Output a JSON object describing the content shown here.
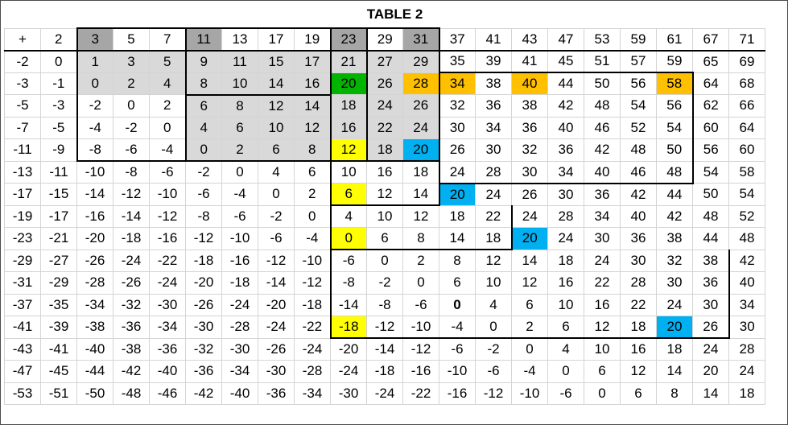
{
  "title": "TABLE 2",
  "colors": {
    "lightgray": "#d9d9d9",
    "darkgray": "#a6a6a6",
    "green": "#00b400",
    "yellow": "#ffff00",
    "orange": "#ffc000",
    "blue": "#00b0f0"
  },
  "table": {
    "header": [
      "+",
      "2",
      "3",
      "5",
      "7",
      "11",
      "13",
      "17",
      "19",
      "23",
      "29",
      "31",
      "37",
      "41",
      "43",
      "47",
      "53",
      "59",
      "61",
      "67",
      "71"
    ],
    "rows": [
      [
        "-2",
        "0",
        "1",
        "3",
        "5",
        "9",
        "11",
        "15",
        "17",
        "21",
        "27",
        "29",
        "35",
        "39",
        "41",
        "45",
        "51",
        "57",
        "59",
        "65",
        "69"
      ],
      [
        "-3",
        "-1",
        "0",
        "2",
        "4",
        "8",
        "10",
        "14",
        "16",
        "20",
        "26",
        "28",
        "34",
        "38",
        "40",
        "44",
        "50",
        "56",
        "58",
        "64",
        "68"
      ],
      [
        "-5",
        "-3",
        "-2",
        "0",
        "2",
        "6",
        "8",
        "12",
        "14",
        "18",
        "24",
        "26",
        "32",
        "36",
        "38",
        "42",
        "48",
        "54",
        "56",
        "62",
        "66"
      ],
      [
        "-7",
        "-5",
        "-4",
        "-2",
        "0",
        "4",
        "6",
        "10",
        "12",
        "16",
        "22",
        "24",
        "30",
        "34",
        "36",
        "40",
        "46",
        "52",
        "54",
        "60",
        "64"
      ],
      [
        "-11",
        "-9",
        "-8",
        "-6",
        "-4",
        "0",
        "2",
        "6",
        "8",
        "12",
        "18",
        "20",
        "26",
        "30",
        "32",
        "36",
        "42",
        "48",
        "50",
        "56",
        "60"
      ],
      [
        "-13",
        "-11",
        "-10",
        "-8",
        "-6",
        "-2",
        "0",
        "4",
        "6",
        "10",
        "16",
        "18",
        "24",
        "28",
        "30",
        "34",
        "40",
        "46",
        "48",
        "54",
        "58"
      ],
      [
        "-17",
        "-15",
        "-14",
        "-12",
        "-10",
        "-6",
        "-4",
        "0",
        "2",
        "6",
        "12",
        "14",
        "20",
        "24",
        "26",
        "30",
        "36",
        "42",
        "44",
        "50",
        "54"
      ],
      [
        "-19",
        "-17",
        "-16",
        "-14",
        "-12",
        "-8",
        "-6",
        "-2",
        "0",
        "4",
        "10",
        "12",
        "18",
        "22",
        "24",
        "28",
        "34",
        "40",
        "42",
        "48",
        "52"
      ],
      [
        "-23",
        "-21",
        "-20",
        "-18",
        "-16",
        "-12",
        "-10",
        "-6",
        "-4",
        "0",
        "6",
        "8",
        "14",
        "18",
        "20",
        "24",
        "30",
        "36",
        "38",
        "44",
        "48"
      ],
      [
        "-29",
        "-27",
        "-26",
        "-24",
        "-22",
        "-18",
        "-16",
        "-12",
        "-10",
        "-6",
        "0",
        "2",
        "8",
        "12",
        "14",
        "18",
        "24",
        "30",
        "32",
        "38",
        "42"
      ],
      [
        "-31",
        "-29",
        "-28",
        "-26",
        "-24",
        "-20",
        "-18",
        "-14",
        "-12",
        "-8",
        "-2",
        "0",
        "6",
        "10",
        "12",
        "16",
        "22",
        "28",
        "30",
        "36",
        "40"
      ],
      [
        "-37",
        "-35",
        "-34",
        "-32",
        "-30",
        "-26",
        "-24",
        "-20",
        "-18",
        "-14",
        "-8",
        "-6",
        "0",
        "4",
        "6",
        "10",
        "16",
        "22",
        "24",
        "30",
        "34"
      ],
      [
        "-41",
        "-39",
        "-38",
        "-36",
        "-34",
        "-30",
        "-28",
        "-24",
        "-22",
        "-18",
        "-12",
        "-10",
        "-4",
        "0",
        "2",
        "6",
        "12",
        "18",
        "20",
        "26",
        "30"
      ],
      [
        "-43",
        "-41",
        "-40",
        "-38",
        "-36",
        "-32",
        "-30",
        "-26",
        "-24",
        "-20",
        "-14",
        "-12",
        "-6",
        "-2",
        "0",
        "4",
        "10",
        "16",
        "18",
        "24",
        "28"
      ],
      [
        "-47",
        "-45",
        "-44",
        "-42",
        "-40",
        "-36",
        "-34",
        "-30",
        "-28",
        "-24",
        "-18",
        "-16",
        "-10",
        "-6",
        "-4",
        "0",
        "6",
        "12",
        "14",
        "20",
        "24"
      ],
      [
        "-53",
        "-51",
        "-50",
        "-48",
        "-46",
        "-42",
        "-40",
        "-36",
        "-34",
        "-30",
        "-24",
        "-22",
        "-16",
        "-12",
        "-10",
        "-6",
        "0",
        "6",
        "8",
        "14",
        "18"
      ]
    ]
  }
}
